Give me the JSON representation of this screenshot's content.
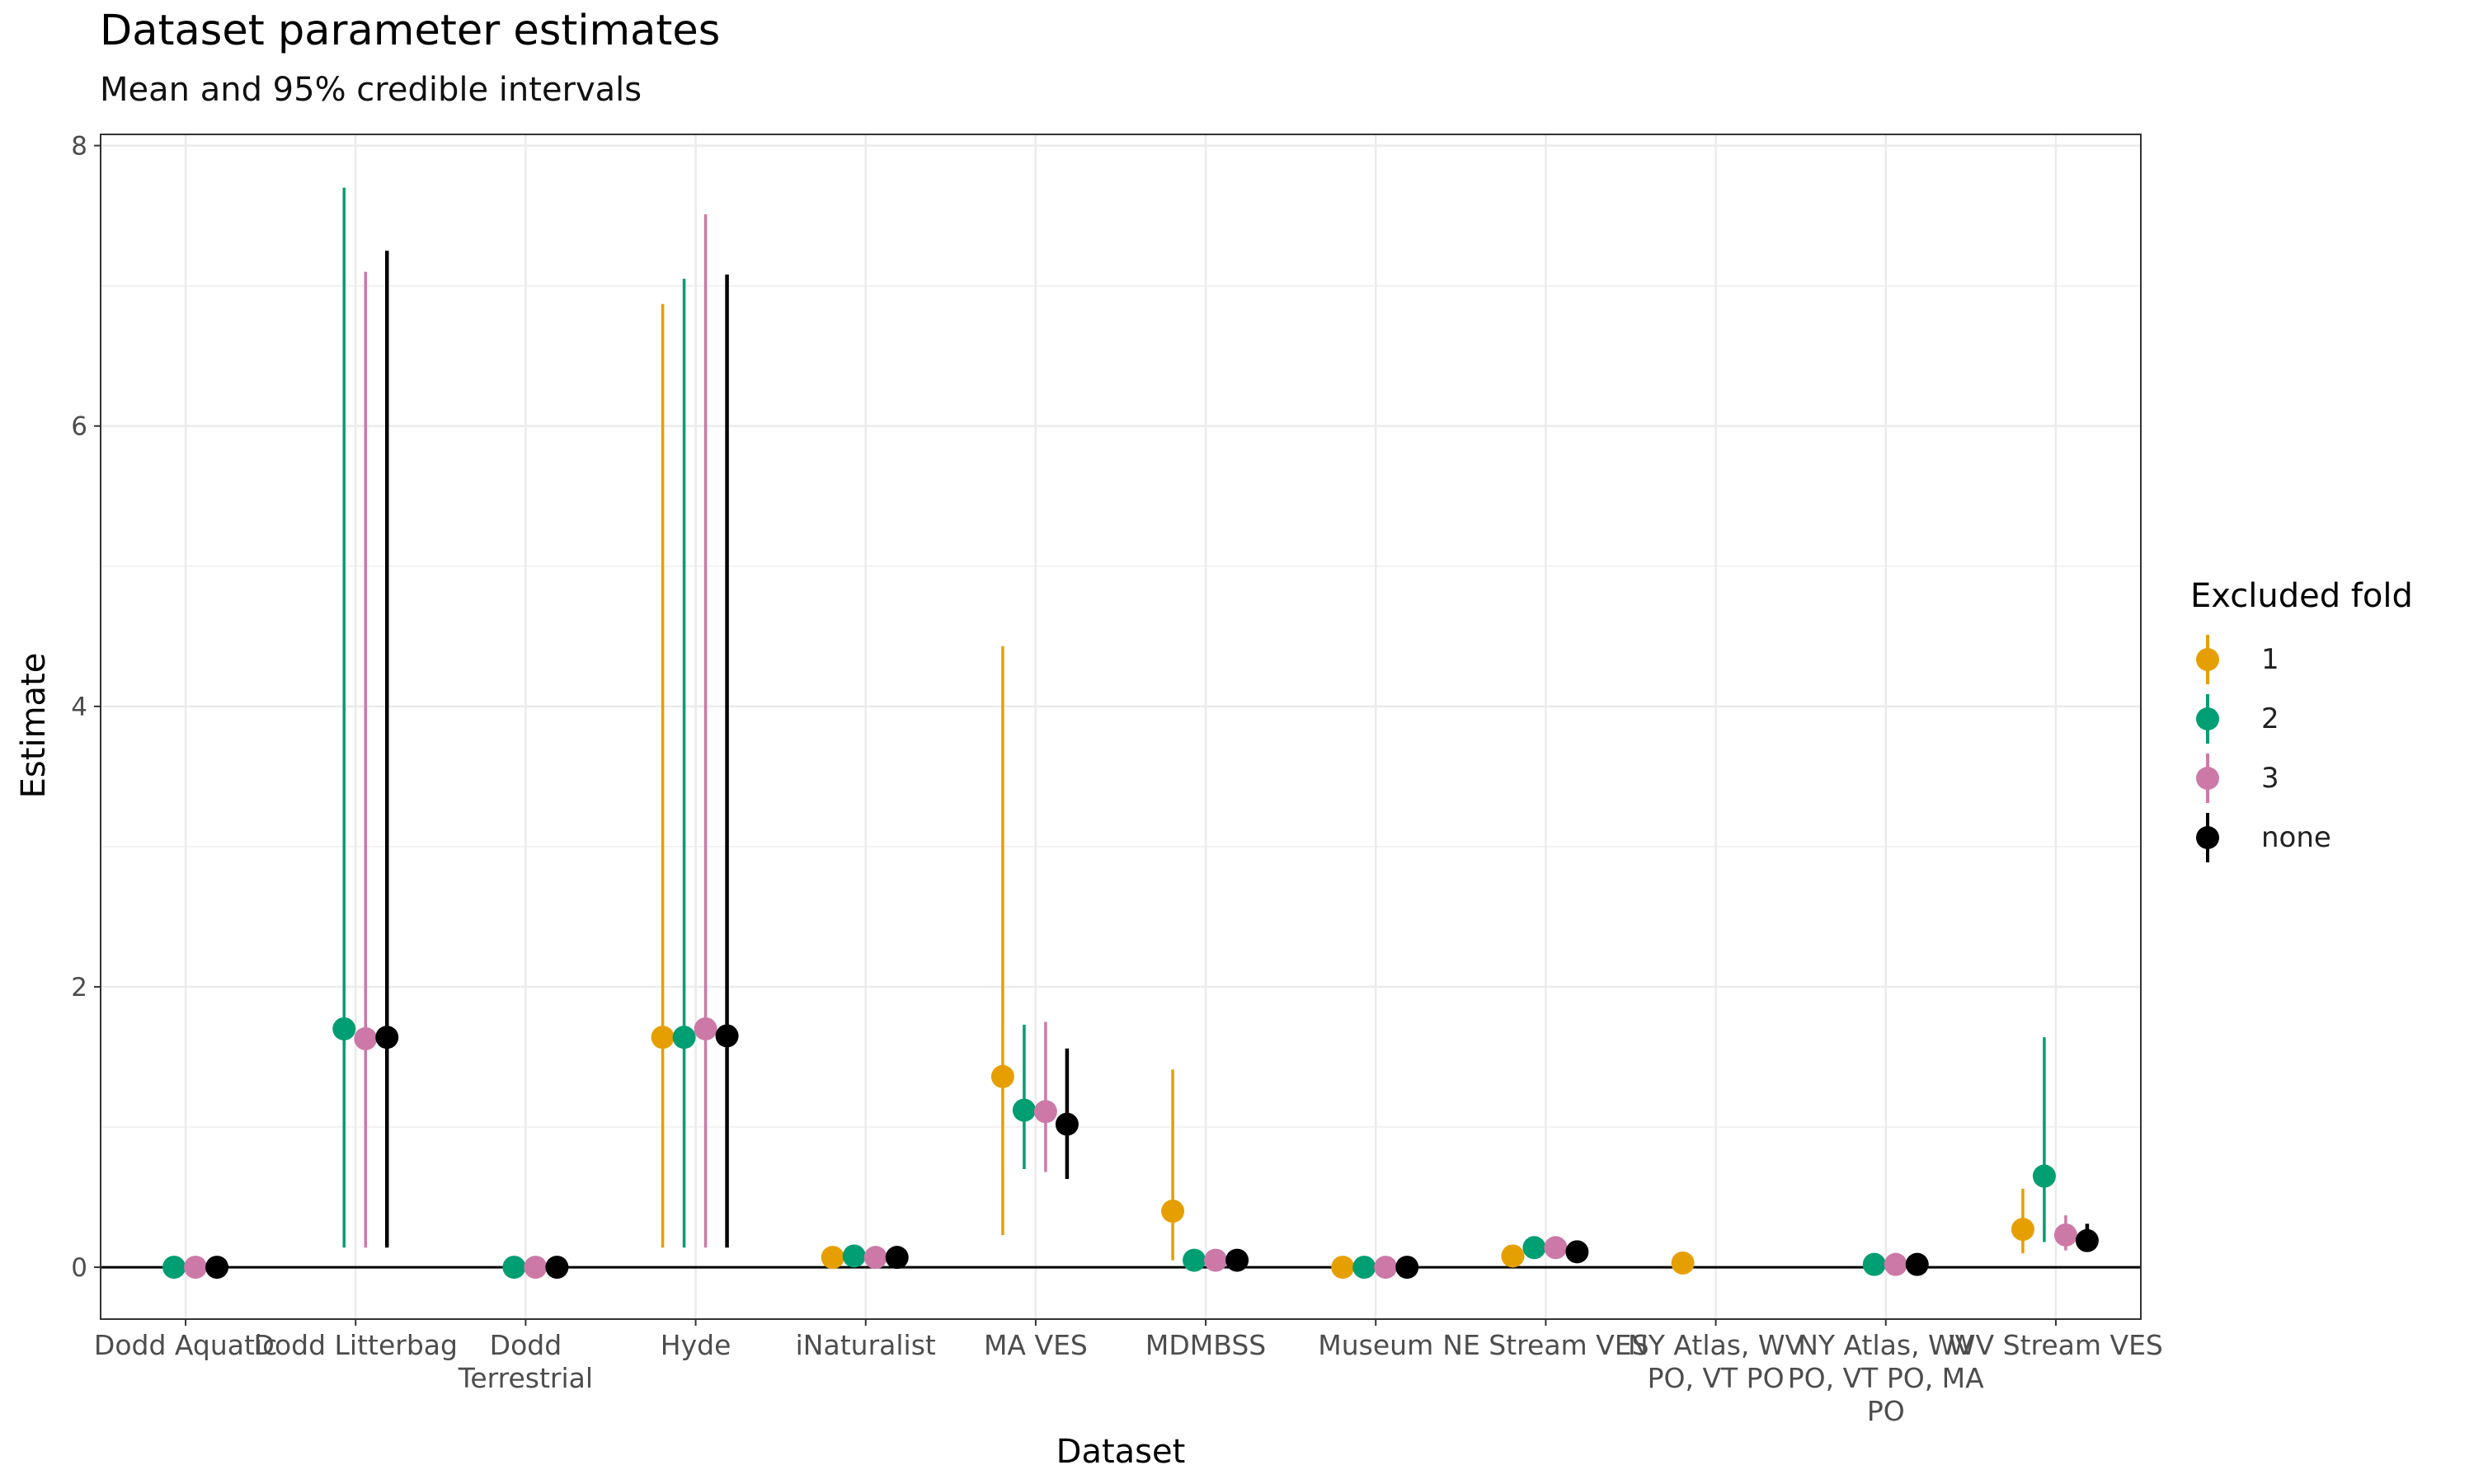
{
  "chart_data": {
    "type": "scatter",
    "title": "Dataset parameter estimates",
    "subtitle": "Mean and 95% credible intervals",
    "xlabel": "Dataset",
    "ylabel": "Estimate",
    "ylim": [
      -0.37,
      8.08
    ],
    "yticks": [
      "0",
      "2",
      "4",
      "6",
      "8"
    ],
    "categories": [
      [
        "Dodd Aquatic"
      ],
      [
        "Dodd Litterbag"
      ],
      [
        "Dodd",
        "Terrestrial"
      ],
      [
        "Hyde"
      ],
      [
        "iNaturalist"
      ],
      [
        "MA VES"
      ],
      [
        "MDMBSS"
      ],
      [
        "Museum"
      ],
      [
        "NE Stream VES"
      ],
      [
        "NY Atlas, WV",
        "PO, VT PO"
      ],
      [
        "NY Atlas, WV",
        "PO, VT PO, MA",
        "PO"
      ],
      [
        "WV Stream VES"
      ]
    ],
    "hline": 0,
    "grid": true,
    "legend_title": "Excluded fold",
    "legend_position": "right",
    "series": [
      {
        "name": "1",
        "color": "#E69F00",
        "mean": [
          null,
          null,
          null,
          1.64,
          0.07,
          1.36,
          0.4,
          0.0,
          0.08,
          0.03,
          null,
          0.27
        ],
        "lower": [
          null,
          null,
          null,
          0.14,
          0.06,
          0.23,
          0.05,
          0.0,
          0.06,
          0.02,
          null,
          0.1
        ],
        "upper": [
          null,
          null,
          null,
          6.87,
          0.09,
          4.43,
          1.41,
          0.01,
          0.12,
          0.05,
          null,
          0.56
        ]
      },
      {
        "name": "2",
        "color": "#009E73",
        "mean": [
          0.0,
          1.7,
          0.0,
          1.64,
          0.08,
          1.12,
          0.05,
          0.0,
          0.14,
          null,
          0.02,
          0.65
        ],
        "lower": [
          0.0,
          0.14,
          0.0,
          0.14,
          0.06,
          0.7,
          0.04,
          0.0,
          0.11,
          null,
          0.01,
          0.18
        ],
        "upper": [
          0.01,
          7.7,
          0.01,
          7.05,
          0.1,
          1.73,
          0.07,
          0.01,
          0.18,
          null,
          0.04,
          1.64
        ]
      },
      {
        "name": "3",
        "color": "#CC79A7",
        "mean": [
          0.0,
          1.63,
          0.0,
          1.7,
          0.07,
          1.11,
          0.05,
          0.0,
          0.14,
          null,
          0.02,
          0.23
        ],
        "lower": [
          0.0,
          0.14,
          0.0,
          0.14,
          0.05,
          0.68,
          0.04,
          0.0,
          0.11,
          null,
          0.01,
          0.12
        ],
        "upper": [
          0.01,
          7.1,
          0.01,
          7.51,
          0.09,
          1.75,
          0.07,
          0.01,
          0.18,
          null,
          0.04,
          0.37
        ]
      },
      {
        "name": "none",
        "color": "#000000",
        "mean": [
          0.0,
          1.64,
          0.0,
          1.65,
          0.07,
          1.02,
          0.05,
          0.0,
          0.11,
          null,
          0.02,
          0.19
        ],
        "lower": [
          0.0,
          0.14,
          0.0,
          0.14,
          0.05,
          0.63,
          0.04,
          0.0,
          0.09,
          null,
          0.01,
          0.13
        ],
        "upper": [
          0.01,
          7.25,
          0.01,
          7.08,
          0.09,
          1.56,
          0.07,
          0.01,
          0.14,
          null,
          0.04,
          0.31
        ]
      }
    ]
  }
}
